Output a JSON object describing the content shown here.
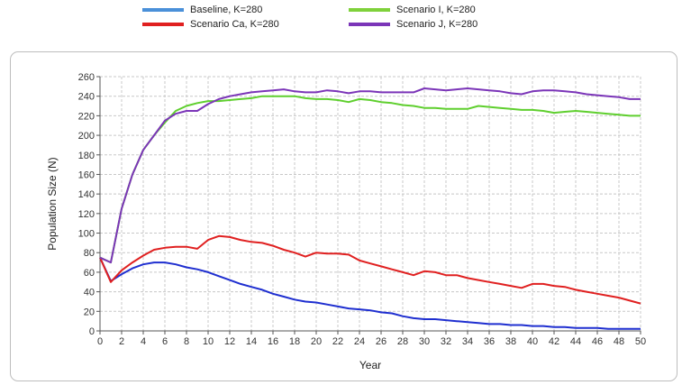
{
  "chart_data": {
    "type": "line",
    "xlabel": "Year",
    "ylabel": "Population Size (N)",
    "xlim": [
      0,
      50
    ],
    "ylim": [
      0,
      260
    ],
    "xticks": [
      0,
      2,
      4,
      6,
      8,
      10,
      12,
      14,
      16,
      18,
      20,
      22,
      24,
      26,
      28,
      30,
      32,
      34,
      36,
      38,
      40,
      42,
      44,
      46,
      48,
      50
    ],
    "yticks": [
      0,
      20,
      40,
      60,
      80,
      100,
      120,
      140,
      160,
      180,
      200,
      220,
      240,
      260
    ],
    "grid": true,
    "legend_position": "top",
    "x": [
      0,
      1,
      2,
      3,
      4,
      5,
      6,
      7,
      8,
      9,
      10,
      11,
      12,
      13,
      14,
      15,
      16,
      17,
      18,
      19,
      20,
      21,
      22,
      23,
      24,
      25,
      26,
      27,
      28,
      29,
      30,
      31,
      32,
      33,
      34,
      35,
      36,
      37,
      38,
      39,
      40,
      41,
      42,
      43,
      44,
      45,
      46,
      47,
      48,
      49,
      50
    ],
    "series": [
      {
        "name": "Baseline, K=280",
        "legend_color": "#4a90d9",
        "line_color": "#1f2fd0",
        "values": [
          75,
          51,
          58,
          64,
          68,
          70,
          70,
          68,
          65,
          63,
          60,
          56,
          52,
          48,
          45,
          42,
          38,
          35,
          32,
          30,
          29,
          27,
          25,
          23,
          22,
          21,
          19,
          18,
          15,
          13,
          12,
          12,
          11,
          10,
          9,
          8,
          7,
          7,
          6,
          6,
          5,
          5,
          4,
          4,
          3,
          3,
          3,
          2,
          2,
          2,
          2
        ]
      },
      {
        "name": "Scenario Ca, K=280",
        "legend_color": "#e02020",
        "line_color": "#e02020",
        "values": [
          75,
          50,
          62,
          70,
          77,
          83,
          85,
          86,
          86,
          84,
          93,
          97,
          96,
          93,
          91,
          90,
          87,
          83,
          80,
          76,
          80,
          79,
          79,
          78,
          72,
          69,
          66,
          63,
          60,
          57,
          61,
          60,
          57,
          57,
          54,
          52,
          50,
          48,
          46,
          44,
          48,
          48,
          46,
          45,
          42,
          40,
          38,
          36,
          34,
          31,
          28
        ]
      },
      {
        "name": "Scenario I, K=280",
        "legend_color": "#7fd13b",
        "line_color": "#5fcf2e",
        "values": [
          75,
          70,
          125,
          160,
          185,
          200,
          213,
          225,
          230,
          233,
          235,
          235,
          236,
          237,
          238,
          240,
          240,
          240,
          240,
          238,
          237,
          237,
          236,
          234,
          237,
          236,
          234,
          233,
          231,
          230,
          228,
          228,
          227,
          227,
          227,
          230,
          229,
          228,
          227,
          226,
          226,
          225,
          223,
          224,
          225,
          224,
          223,
          222,
          221,
          220,
          220
        ]
      },
      {
        "name": "Scenario J, K=280",
        "legend_color": "#7b35b8",
        "line_color": "#7b35b8",
        "values": [
          75,
          70,
          125,
          160,
          185,
          200,
          215,
          222,
          225,
          225,
          232,
          237,
          240,
          242,
          244,
          245,
          246,
          247,
          245,
          244,
          244,
          246,
          245,
          243,
          245,
          245,
          244,
          244,
          244,
          244,
          248,
          247,
          246,
          247,
          248,
          247,
          246,
          245,
          243,
          242,
          245,
          246,
          246,
          245,
          244,
          242,
          241,
          240,
          239,
          237,
          237
        ]
      }
    ]
  }
}
